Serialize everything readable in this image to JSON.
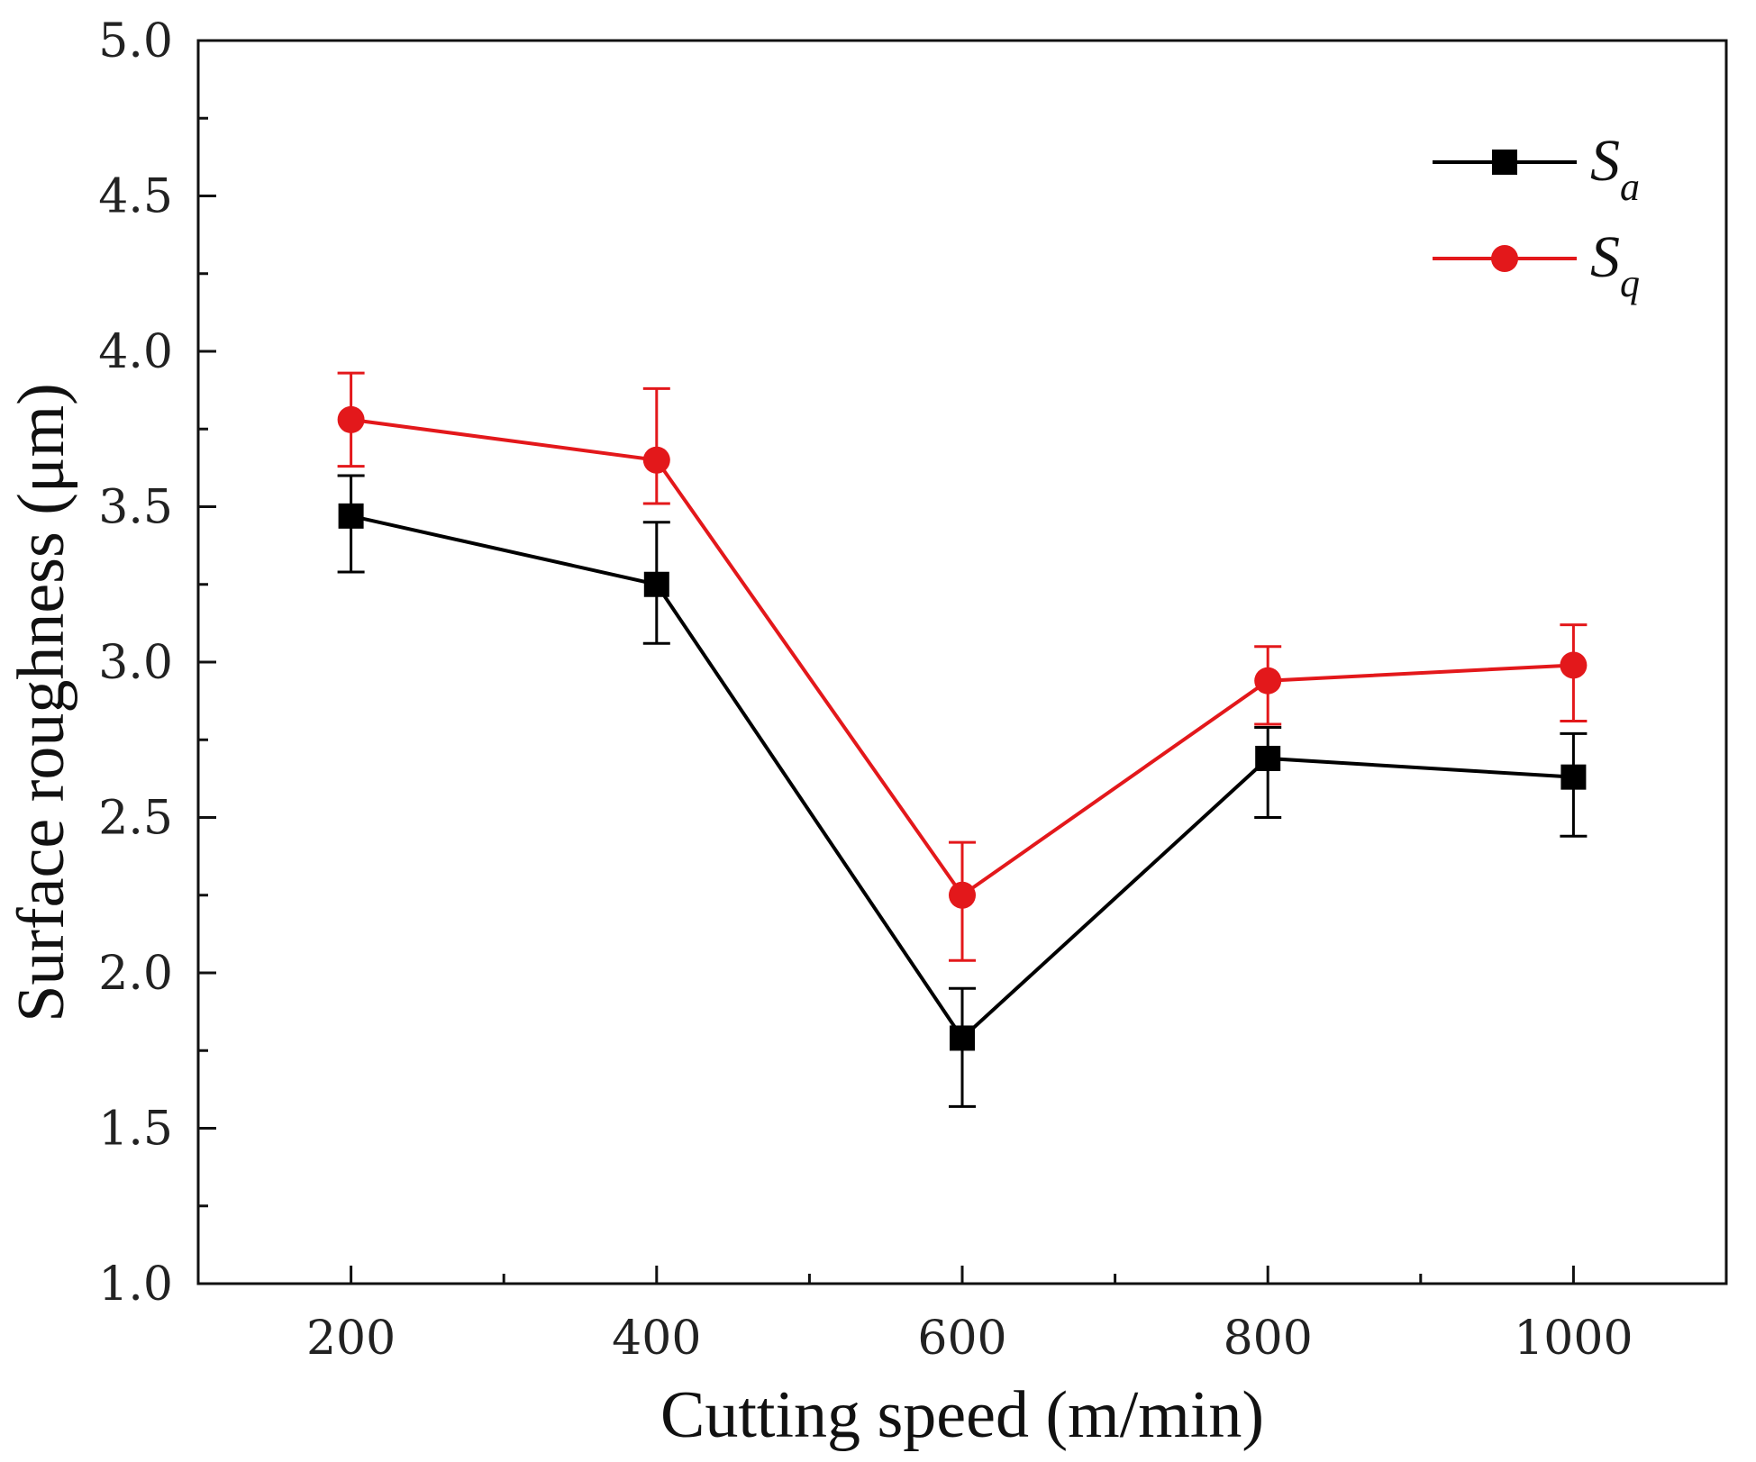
{
  "chart_data": {
    "type": "line",
    "title": "",
    "xlabel": "Cutting speed (m/min)",
    "ylabel": "Surface roughness (μm)",
    "x": [
      200,
      400,
      600,
      800,
      1000
    ],
    "xlim": [
      100,
      1100
    ],
    "ylim": [
      1.0,
      5.0
    ],
    "xticks": [
      200,
      400,
      600,
      800,
      1000
    ],
    "xtick_labels": [
      "200",
      "400",
      "600",
      "800",
      "1000"
    ],
    "yticks": [
      1.0,
      1.5,
      2.0,
      2.5,
      3.0,
      3.5,
      4.0,
      4.5,
      5.0
    ],
    "ytick_labels": [
      "1.0",
      "1.5",
      "2.0",
      "2.5",
      "3.0",
      "3.5",
      "4.0",
      "4.5",
      "5.0"
    ],
    "grid": false,
    "legend_position": "top-right",
    "series": [
      {
        "name": "Sa",
        "label_main": "S",
        "label_sub": "a",
        "color": "#000000",
        "marker": "square",
        "values": [
          3.47,
          3.25,
          1.79,
          2.69,
          2.63
        ],
        "err_upper": [
          3.6,
          3.45,
          1.95,
          2.79,
          2.77
        ],
        "err_lower": [
          3.29,
          3.06,
          1.57,
          2.5,
          2.44
        ]
      },
      {
        "name": "Sq",
        "label_main": "S",
        "label_sub": "q",
        "color": "#e3181b",
        "marker": "circle",
        "values": [
          3.78,
          3.65,
          2.25,
          2.94,
          2.99
        ],
        "err_upper": [
          3.93,
          3.88,
          2.42,
          3.05,
          3.12
        ],
        "err_lower": [
          3.63,
          3.51,
          2.04,
          2.8,
          2.81
        ]
      }
    ]
  }
}
